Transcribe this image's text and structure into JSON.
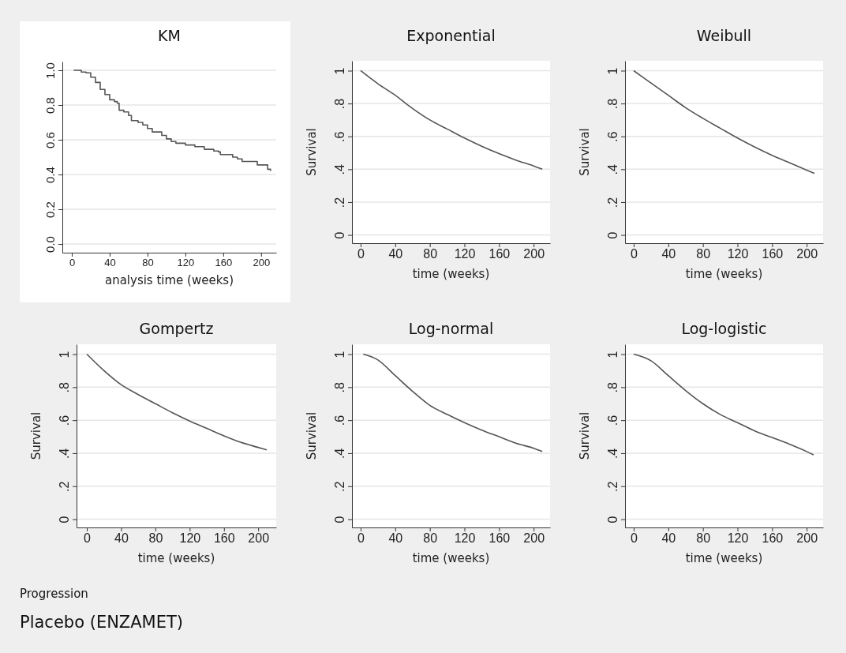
{
  "chart_data": [
    {
      "type": "step",
      "title": "KM",
      "xlabel": "analysis time (weeks)",
      "color": "#555555",
      "xlim": [
        -10,
        216
      ],
      "ylim": [
        -0.05,
        1.05
      ],
      "xticks": [
        0,
        40,
        80,
        120,
        160,
        200
      ],
      "yticks": [
        {
          "value": 0,
          "label": "0.0"
        },
        {
          "value": 0.2,
          "label": "0.2"
        },
        {
          "value": 0.4,
          "label": "0.4"
        },
        {
          "value": 0.6,
          "label": "0.6"
        },
        {
          "value": 0.8,
          "label": "0.8"
        },
        {
          "value": 1,
          "label": "1.0"
        }
      ],
      "grid": "y",
      "x": [
        2,
        10,
        15,
        20,
        25,
        30,
        35,
        40,
        45,
        48,
        50,
        55,
        60,
        63,
        70,
        75,
        80,
        85,
        90,
        95,
        100,
        105,
        110,
        120,
        130,
        140,
        150,
        155,
        157,
        165,
        170,
        175,
        180,
        195,
        196,
        205,
        207,
        210
      ],
      "values": [
        1.0,
        0.99,
        0.985,
        0.96,
        0.93,
        0.89,
        0.86,
        0.83,
        0.82,
        0.81,
        0.77,
        0.76,
        0.74,
        0.71,
        0.7,
        0.685,
        0.665,
        0.645,
        0.645,
        0.625,
        0.605,
        0.59,
        0.58,
        0.57,
        0.56,
        0.545,
        0.535,
        0.53,
        0.515,
        0.515,
        0.5,
        0.49,
        0.475,
        0.475,
        0.455,
        0.455,
        0.43,
        0.42
      ]
    },
    {
      "type": "line",
      "title": "Exponential",
      "xlabel": "time (weeks)",
      "ylabel": "Survival",
      "color": "#555555",
      "xlim": [
        -10,
        219
      ],
      "ylim": [
        -0.05,
        1.06
      ],
      "xticks": [
        0,
        40,
        80,
        120,
        160,
        200
      ],
      "yticks": [
        {
          "value": 0,
          "label": "0"
        },
        {
          "value": 0.2,
          "label": ".2"
        },
        {
          "value": 0.4,
          "label": ".4"
        },
        {
          "value": 0.6,
          "label": ".6"
        },
        {
          "value": 0.8,
          "label": ".8"
        },
        {
          "value": 1,
          "label": "1"
        }
      ],
      "grid": "y",
      "x": [
        0,
        20,
        40,
        60,
        80,
        100,
        120,
        140,
        160,
        180,
        200,
        210
      ],
      "values": [
        1,
        0.92,
        0.85,
        0.77,
        0.7,
        0.645,
        0.59,
        0.54,
        0.495,
        0.455,
        0.42,
        0.4
      ]
    },
    {
      "type": "line",
      "title": "Weibull",
      "xlabel": "time (weeks)",
      "ylabel": "Survival",
      "color": "#555555",
      "xlim": [
        -10,
        219
      ],
      "ylim": [
        -0.05,
        1.06
      ],
      "xticks": [
        0,
        40,
        80,
        120,
        160,
        200
      ],
      "yticks": [
        {
          "value": 0,
          "label": "0"
        },
        {
          "value": 0.2,
          "label": ".2"
        },
        {
          "value": 0.4,
          "label": ".4"
        },
        {
          "value": 0.6,
          "label": ".6"
        },
        {
          "value": 0.8,
          "label": ".8"
        },
        {
          "value": 1,
          "label": "1"
        }
      ],
      "grid": "y",
      "x": [
        0,
        20,
        40,
        60,
        80,
        100,
        120,
        140,
        160,
        180,
        200,
        209
      ],
      "values": [
        1,
        0.925,
        0.85,
        0.775,
        0.71,
        0.65,
        0.59,
        0.535,
        0.485,
        0.44,
        0.395,
        0.375
      ]
    },
    {
      "type": "line",
      "title": "Gompertz",
      "xlabel": "time (weeks)",
      "ylabel": "Survival",
      "color": "#555555",
      "xlim": [
        -12,
        221
      ],
      "ylim": [
        -0.05,
        1.06
      ],
      "xticks": [
        0,
        40,
        80,
        120,
        160,
        200
      ],
      "yticks": [
        {
          "value": 0,
          "label": "0"
        },
        {
          "value": 0.2,
          "label": ".2"
        },
        {
          "value": 0.4,
          "label": ".4"
        },
        {
          "value": 0.6,
          "label": ".6"
        },
        {
          "value": 0.8,
          "label": ".8"
        },
        {
          "value": 1,
          "label": "1"
        }
      ],
      "grid": "y",
      "x": [
        0,
        20,
        40,
        60,
        80,
        100,
        120,
        140,
        160,
        180,
        200,
        210
      ],
      "values": [
        1,
        0.9,
        0.815,
        0.755,
        0.7,
        0.645,
        0.595,
        0.55,
        0.505,
        0.465,
        0.435,
        0.42
      ]
    },
    {
      "type": "line",
      "title": "Log-normal",
      "xlabel": "time (weeks)",
      "ylabel": "Survival",
      "color": "#555555",
      "xlim": [
        -10,
        219
      ],
      "ylim": [
        -0.05,
        1.06
      ],
      "xticks": [
        0,
        40,
        80,
        120,
        160,
        200
      ],
      "yticks": [
        {
          "value": 0,
          "label": "0"
        },
        {
          "value": 0.2,
          "label": ".2"
        },
        {
          "value": 0.4,
          "label": ".4"
        },
        {
          "value": 0.6,
          "label": ".6"
        },
        {
          "value": 0.8,
          "label": ".8"
        },
        {
          "value": 1,
          "label": "1"
        }
      ],
      "grid": "y",
      "x": [
        3,
        20,
        40,
        60,
        80,
        100,
        120,
        140,
        160,
        180,
        200,
        210
      ],
      "values": [
        1,
        0.965,
        0.87,
        0.775,
        0.69,
        0.635,
        0.585,
        0.54,
        0.5,
        0.46,
        0.43,
        0.41
      ]
    },
    {
      "type": "line",
      "title": "Log-logistic",
      "xlabel": "time (weeks)",
      "ylabel": "Survival",
      "color": "#555555",
      "xlim": [
        -10,
        219
      ],
      "ylim": [
        -0.05,
        1.06
      ],
      "xticks": [
        0,
        40,
        80,
        120,
        160,
        200
      ],
      "yticks": [
        {
          "value": 0,
          "label": "0"
        },
        {
          "value": 0.2,
          "label": ".2"
        },
        {
          "value": 0.4,
          "label": ".4"
        },
        {
          "value": 0.6,
          "label": ".6"
        },
        {
          "value": 0.8,
          "label": ".8"
        },
        {
          "value": 1,
          "label": "1"
        }
      ],
      "grid": "y",
      "x": [
        0,
        20,
        40,
        60,
        80,
        100,
        120,
        140,
        160,
        180,
        200,
        208
      ],
      "values": [
        1,
        0.96,
        0.87,
        0.78,
        0.7,
        0.635,
        0.585,
        0.535,
        0.495,
        0.455,
        0.41,
        0.39
      ],
      "annotations": [
        "Progression",
        "Placebo (ENZAMET)"
      ]
    }
  ]
}
